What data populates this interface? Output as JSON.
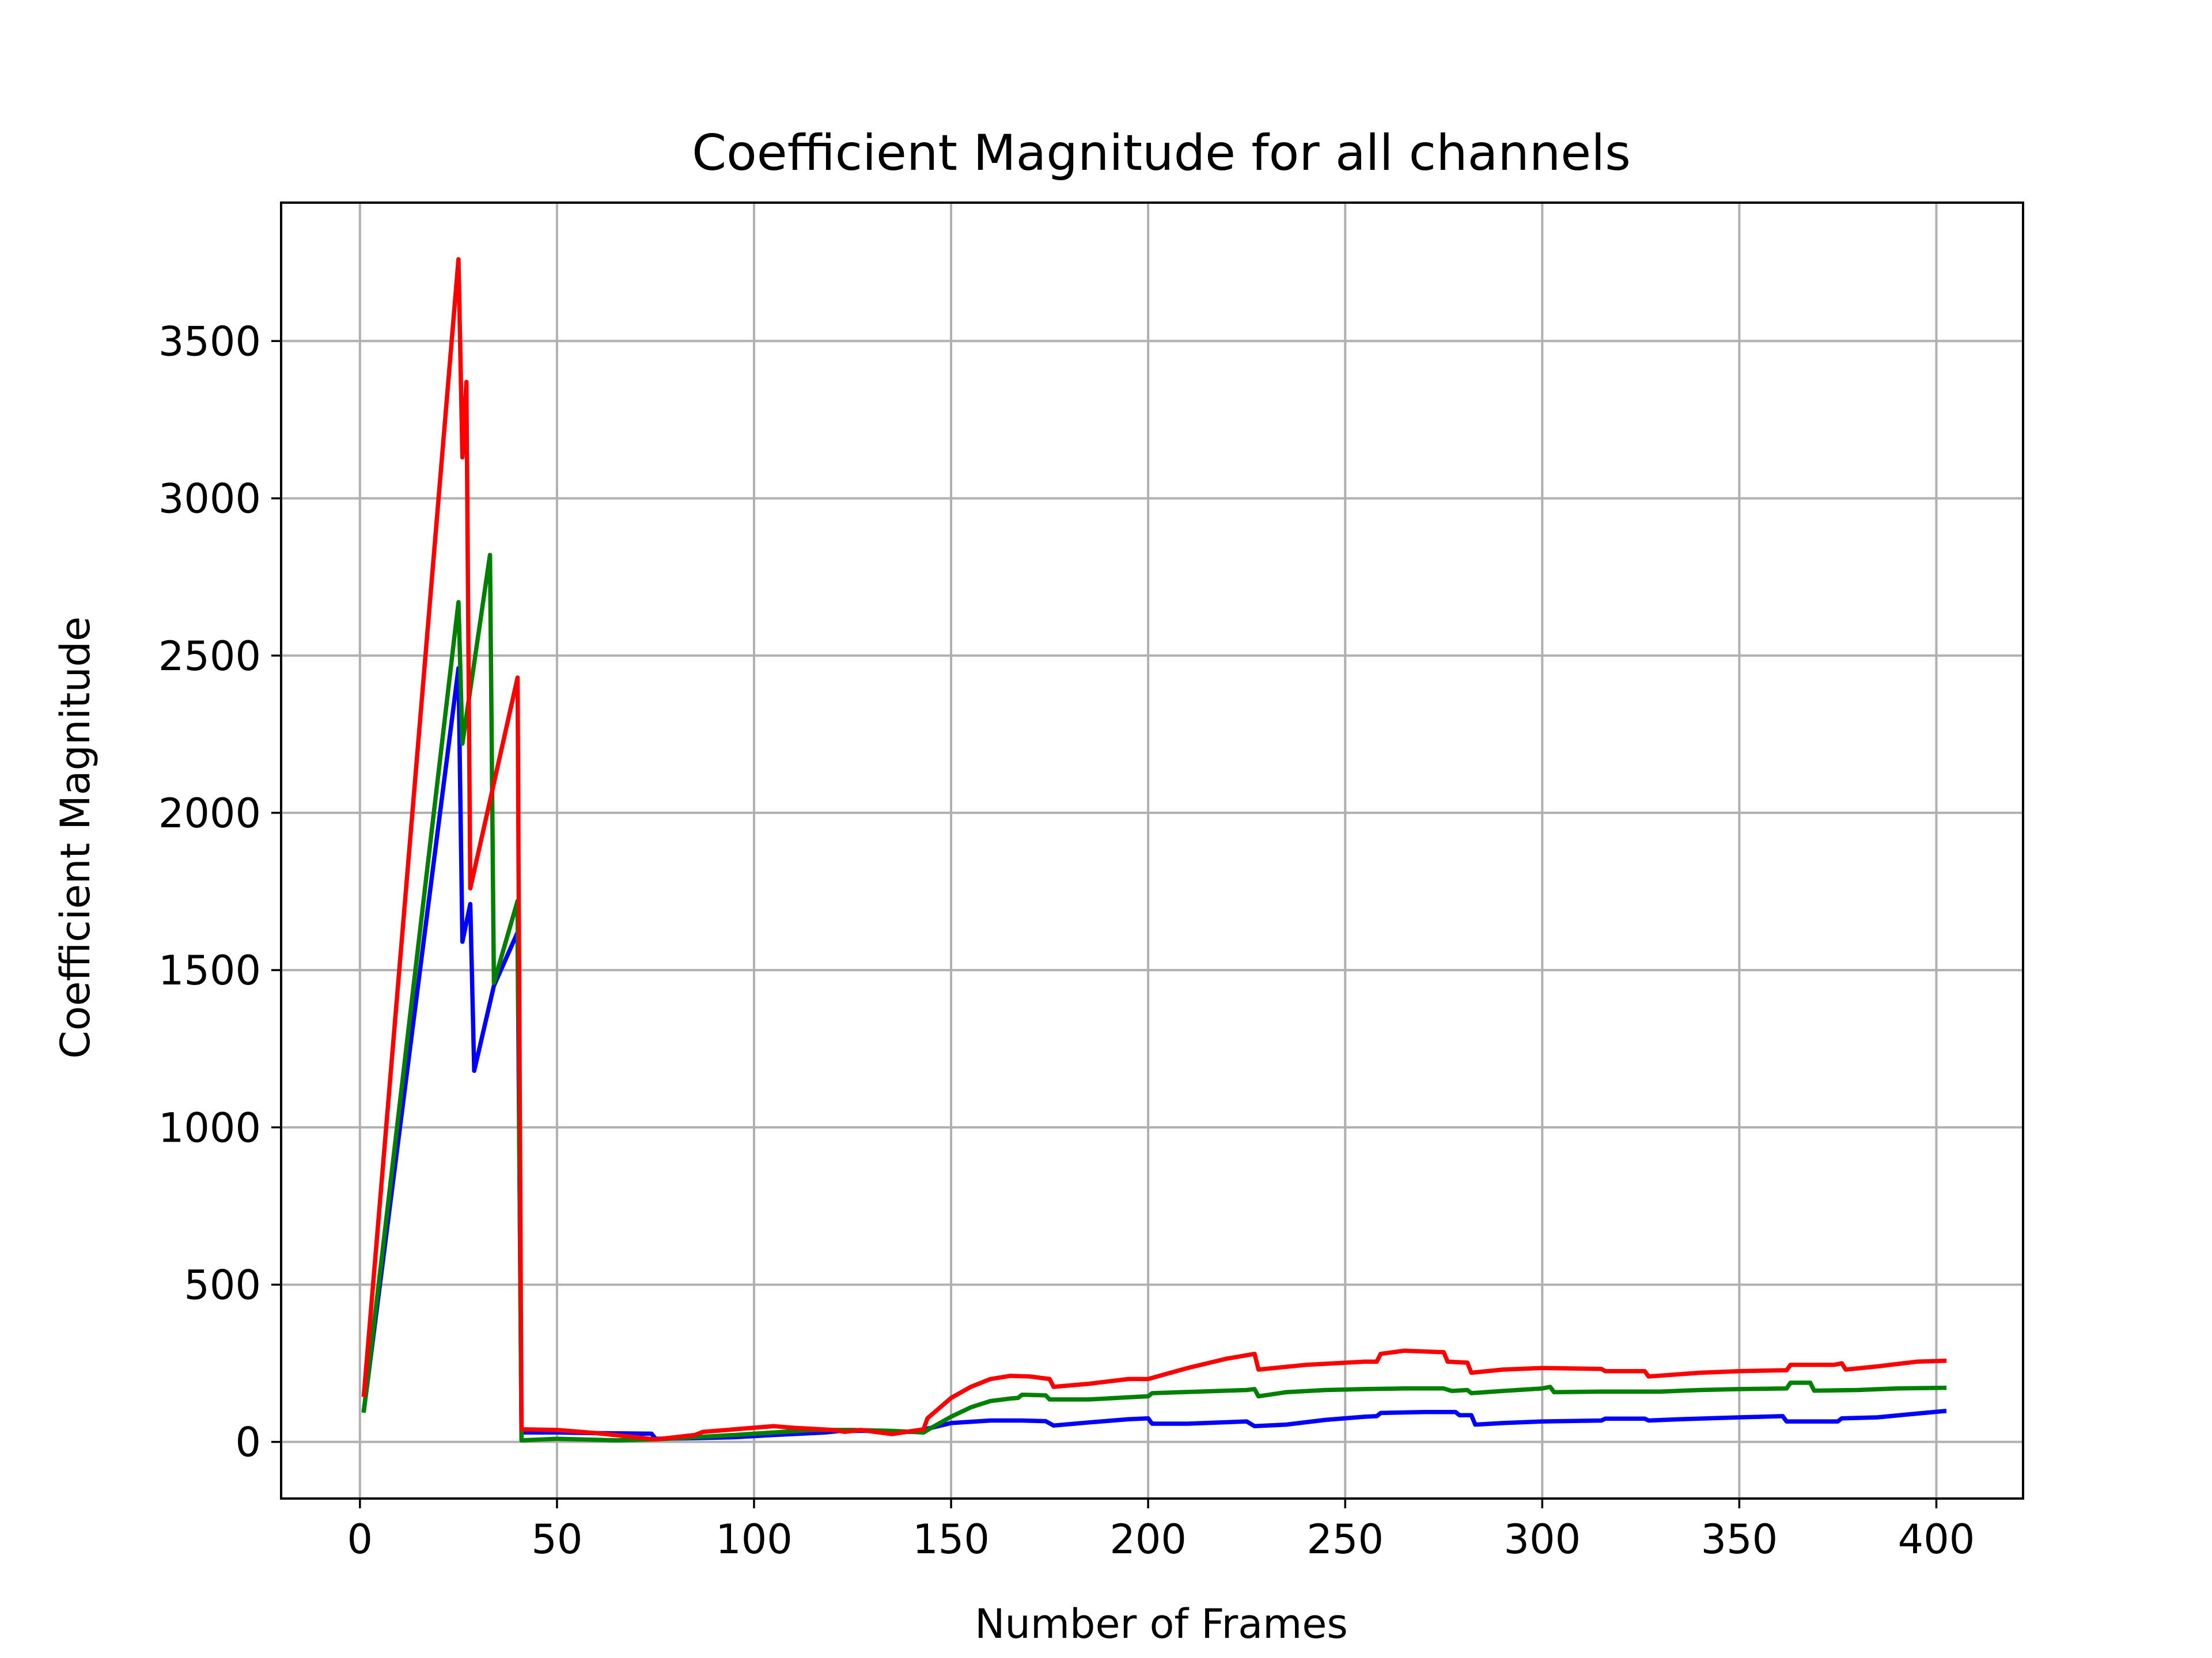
{
  "chart_data": {
    "type": "line",
    "title": "Coefficient Magnitude for all channels",
    "xlabel": "Number of Frames",
    "ylabel": "Coefficient Magnitude",
    "xlim": [
      -20,
      422
    ],
    "ylim": [
      -180,
      3940
    ],
    "xticks": [
      0,
      50,
      100,
      150,
      200,
      250,
      300,
      350,
      400
    ],
    "yticks": [
      0,
      500,
      1000,
      1500,
      2000,
      2500,
      3000,
      3500
    ],
    "grid": true,
    "legend": "none",
    "series": [
      {
        "color": "#0000ff",
        "points": [
          [
            1,
            100
          ],
          [
            25,
            2460
          ],
          [
            26,
            1590
          ],
          [
            28,
            1710
          ],
          [
            29,
            1180
          ],
          [
            34,
            1450
          ],
          [
            40,
            1620
          ],
          [
            41,
            30
          ],
          [
            50,
            30
          ],
          [
            60,
            28
          ],
          [
            74,
            26
          ],
          [
            75,
            10
          ],
          [
            85,
            12
          ],
          [
            95,
            15
          ],
          [
            105,
            22
          ],
          [
            118,
            30
          ],
          [
            122,
            35
          ],
          [
            130,
            35
          ],
          [
            140,
            32
          ],
          [
            145,
            45
          ],
          [
            150,
            60
          ],
          [
            160,
            68
          ],
          [
            168,
            68
          ],
          [
            174,
            66
          ],
          [
            176,
            52
          ],
          [
            185,
            62
          ],
          [
            195,
            72
          ],
          [
            200,
            75
          ],
          [
            201,
            58
          ],
          [
            210,
            58
          ],
          [
            225,
            65
          ],
          [
            227,
            50
          ],
          [
            235,
            55
          ],
          [
            245,
            70
          ],
          [
            255,
            80
          ],
          [
            258,
            82
          ],
          [
            259,
            92
          ],
          [
            270,
            95
          ],
          [
            278,
            95
          ],
          [
            279,
            85
          ],
          [
            282,
            85
          ],
          [
            283,
            55
          ],
          [
            290,
            60
          ],
          [
            300,
            65
          ],
          [
            315,
            68
          ],
          [
            316,
            74
          ],
          [
            326,
            74
          ],
          [
            327,
            68
          ],
          [
            335,
            72
          ],
          [
            350,
            78
          ],
          [
            361,
            82
          ],
          [
            362,
            65
          ],
          [
            375,
            65
          ],
          [
            376,
            75
          ],
          [
            385,
            78
          ],
          [
            395,
            90
          ],
          [
            402,
            98
          ]
        ]
      },
      {
        "color": "#008000",
        "points": [
          [
            1,
            100
          ],
          [
            25,
            2670
          ],
          [
            26,
            2220
          ],
          [
            33,
            2820
          ],
          [
            34,
            1460
          ],
          [
            40,
            1720
          ],
          [
            41,
            5
          ],
          [
            50,
            10
          ],
          [
            65,
            5
          ],
          [
            75,
            8
          ],
          [
            85,
            15
          ],
          [
            95,
            22
          ],
          [
            105,
            30
          ],
          [
            115,
            38
          ],
          [
            125,
            38
          ],
          [
            135,
            35
          ],
          [
            143,
            30
          ],
          [
            145,
            45
          ],
          [
            150,
            80
          ],
          [
            155,
            110
          ],
          [
            160,
            130
          ],
          [
            165,
            138
          ],
          [
            167,
            140
          ],
          [
            168,
            150
          ],
          [
            174,
            148
          ],
          [
            175,
            135
          ],
          [
            185,
            135
          ],
          [
            195,
            142
          ],
          [
            200,
            145
          ],
          [
            201,
            155
          ],
          [
            225,
            165
          ],
          [
            227,
            168
          ],
          [
            228,
            145
          ],
          [
            235,
            158
          ],
          [
            245,
            165
          ],
          [
            255,
            168
          ],
          [
            265,
            170
          ],
          [
            275,
            170
          ],
          [
            277,
            162
          ],
          [
            281,
            165
          ],
          [
            282,
            155
          ],
          [
            290,
            162
          ],
          [
            300,
            170
          ],
          [
            302,
            175
          ],
          [
            303,
            158
          ],
          [
            315,
            160
          ],
          [
            330,
            160
          ],
          [
            340,
            165
          ],
          [
            350,
            168
          ],
          [
            362,
            170
          ],
          [
            363,
            188
          ],
          [
            368,
            188
          ],
          [
            369,
            163
          ],
          [
            380,
            165
          ],
          [
            390,
            170
          ],
          [
            402,
            172
          ]
        ]
      },
      {
        "color": "#ff0000",
        "points": [
          [
            1,
            150
          ],
          [
            25,
            3760
          ],
          [
            26,
            3130
          ],
          [
            27,
            3370
          ],
          [
            28,
            1760
          ],
          [
            40,
            2430
          ],
          [
            41,
            40
          ],
          [
            50,
            38
          ],
          [
            60,
            28
          ],
          [
            70,
            15
          ],
          [
            75,
            8
          ],
          [
            80,
            15
          ],
          [
            85,
            22
          ],
          [
            87,
            32
          ],
          [
            95,
            40
          ],
          [
            105,
            50
          ],
          [
            110,
            45
          ],
          [
            120,
            38
          ],
          [
            123,
            32
          ],
          [
            127,
            38
          ],
          [
            135,
            25
          ],
          [
            143,
            40
          ],
          [
            144,
            75
          ],
          [
            150,
            140
          ],
          [
            155,
            175
          ],
          [
            160,
            200
          ],
          [
            165,
            210
          ],
          [
            170,
            208
          ],
          [
            175,
            200
          ],
          [
            176,
            175
          ],
          [
            185,
            185
          ],
          [
            195,
            200
          ],
          [
            200,
            200
          ],
          [
            210,
            235
          ],
          [
            220,
            265
          ],
          [
            227,
            280
          ],
          [
            228,
            230
          ],
          [
            240,
            245
          ],
          [
            255,
            255
          ],
          [
            258,
            255
          ],
          [
            259,
            280
          ],
          [
            265,
            290
          ],
          [
            275,
            285
          ],
          [
            276,
            255
          ],
          [
            281,
            252
          ],
          [
            282,
            220
          ],
          [
            290,
            230
          ],
          [
            300,
            235
          ],
          [
            315,
            232
          ],
          [
            316,
            225
          ],
          [
            326,
            225
          ],
          [
            327,
            208
          ],
          [
            340,
            220
          ],
          [
            350,
            225
          ],
          [
            362,
            228
          ],
          [
            363,
            245
          ],
          [
            374,
            245
          ],
          [
            376,
            250
          ],
          [
            377,
            230
          ],
          [
            385,
            240
          ],
          [
            395,
            255
          ],
          [
            402,
            258
          ]
        ]
      }
    ]
  }
}
